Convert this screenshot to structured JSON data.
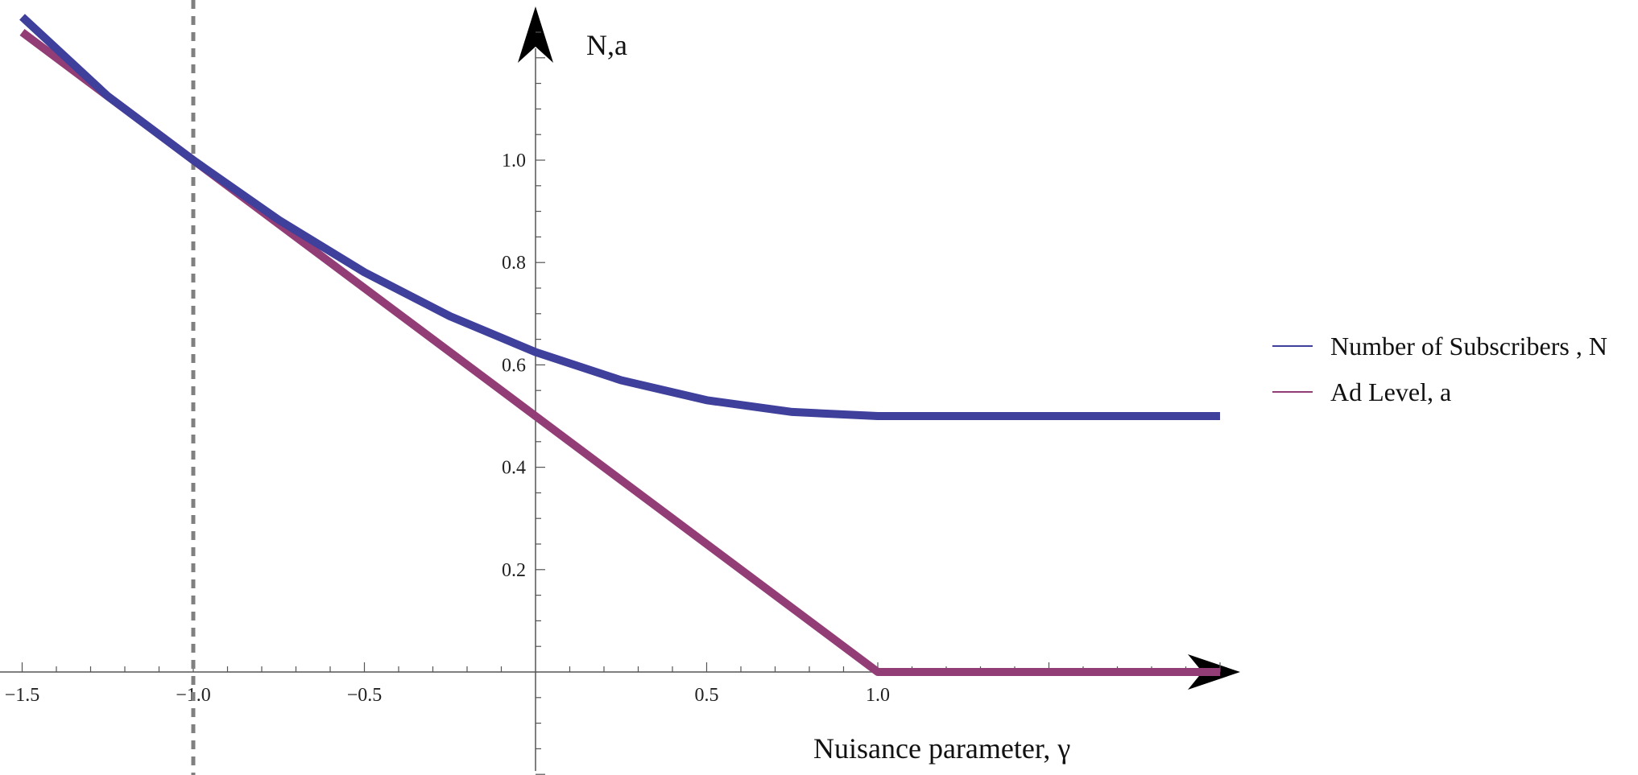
{
  "chart_data": {
    "type": "line",
    "title": "",
    "xlabel": "Nuisance parameter, γ",
    "ylabel": "N,a",
    "xlim": [
      -1.55,
      2.1
    ],
    "ylim": [
      -0.2,
      1.3
    ],
    "x_ticks": [
      -1.5,
      -1.0,
      -0.5,
      0.5,
      1.0
    ],
    "x_tick_labels": [
      "−1.5",
      "−1.0",
      "−0.5",
      "0.5",
      "1.0"
    ],
    "y_ticks": [
      0.2,
      0.4,
      0.6,
      0.8,
      1.0
    ],
    "y_tick_labels": [
      "0.2",
      "0.4",
      "0.6",
      "0.8",
      "1.0"
    ],
    "reference_line": {
      "x": -1.0,
      "style": "dashed",
      "color": "#808080"
    },
    "grid": false,
    "legend_position": "right",
    "series": [
      {
        "name": "Number of Subscribers , N",
        "color": "#3f3f9c",
        "x": [
          -1.5,
          -1.25,
          -1.0,
          -0.75,
          -0.5,
          -0.25,
          0.0,
          0.25,
          0.5,
          0.75,
          1.0,
          1.5,
          2.0
        ],
        "y": [
          1.28,
          1.125,
          1.0,
          0.883,
          0.781,
          0.695,
          0.625,
          0.57,
          0.531,
          0.508,
          0.5,
          0.5,
          0.5
        ]
      },
      {
        "name": "Ad Level, a",
        "color": "#933d77",
        "x": [
          -1.5,
          -1.0,
          0.0,
          1.0,
          2.0
        ],
        "y": [
          1.25,
          1.0,
          0.5,
          0.0,
          0.0
        ]
      }
    ]
  }
}
